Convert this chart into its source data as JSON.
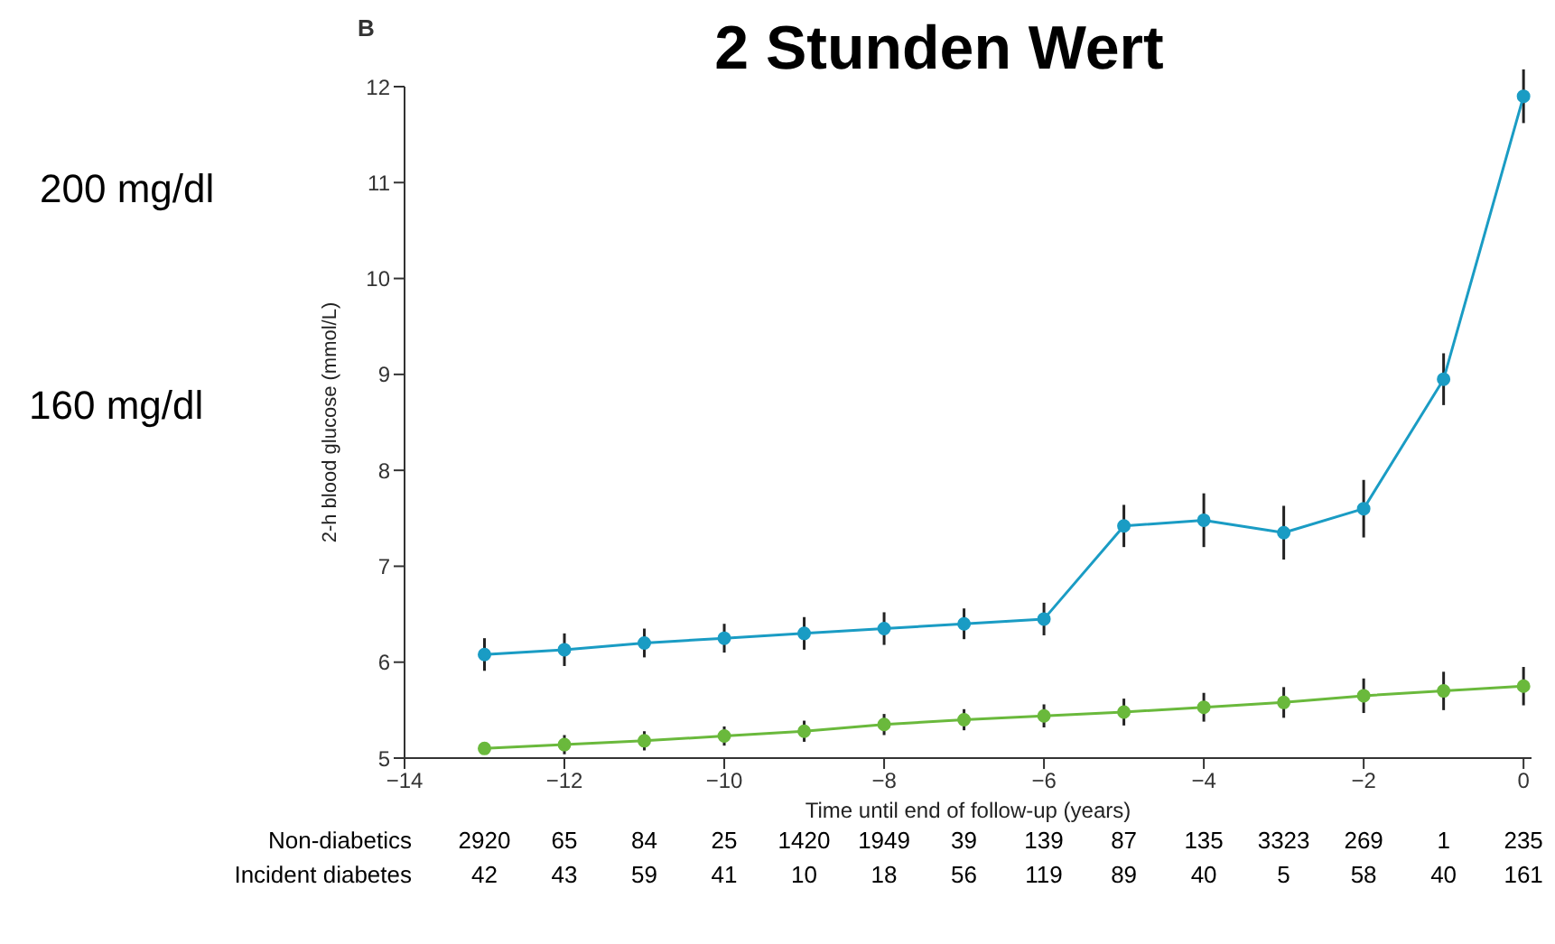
{
  "chart_data": {
    "type": "line",
    "title": "2 Stunden Wert",
    "xlabel": "Time until end of follow-up (years)",
    "ylabel": "2-h blood glucose (mmol/L)",
    "x": [
      -13,
      -12,
      -11,
      -10,
      -9,
      -8,
      -7,
      -6,
      -5,
      -4,
      -3,
      -2,
      -1,
      0
    ],
    "series": [
      {
        "color": "#1a9cc4",
        "values": [
          6.08,
          6.13,
          6.2,
          6.25,
          6.3,
          6.35,
          6.4,
          6.45,
          7.42,
          7.48,
          7.35,
          7.6,
          8.95,
          11.9
        ],
        "errors": [
          0.17,
          0.17,
          0.15,
          0.15,
          0.17,
          0.17,
          0.16,
          0.17,
          0.22,
          0.28,
          0.28,
          0.3,
          0.27,
          0.28
        ]
      },
      {
        "color": "#6ab93c",
        "values": [
          5.1,
          5.14,
          5.18,
          5.23,
          5.28,
          5.35,
          5.4,
          5.44,
          5.48,
          5.53,
          5.58,
          5.65,
          5.7,
          5.75
        ],
        "errors": [
          null,
          0.1,
          0.1,
          0.1,
          0.11,
          0.11,
          0.11,
          0.12,
          0.14,
          0.15,
          0.16,
          0.18,
          0.2,
          0.2
        ]
      }
    ],
    "xlim": [
      -14,
      0.1
    ],
    "xticks": [
      -14,
      -12,
      -10,
      -8,
      -6,
      -4,
      -2,
      0
    ],
    "ylim": [
      5,
      12
    ],
    "yticks": [
      5,
      6,
      7,
      8,
      9,
      10,
      11,
      12
    ],
    "grid": false,
    "legend": false,
    "marker": "circle",
    "line_style": "solid",
    "annotations": [
      "B",
      "200 mg/dl",
      "160 mg/dl",
      "Non-diabetics",
      "2920",
      "65",
      "84",
      "25",
      "1420",
      "1949",
      "39",
      "139",
      "87",
      "135",
      "3323",
      "269",
      "1",
      "235",
      "Incident diabetes",
      "42",
      "43",
      "59",
      "41",
      "10",
      "18",
      "56",
      "119",
      "89",
      "40",
      "5",
      "58",
      "40",
      "161"
    ]
  }
}
